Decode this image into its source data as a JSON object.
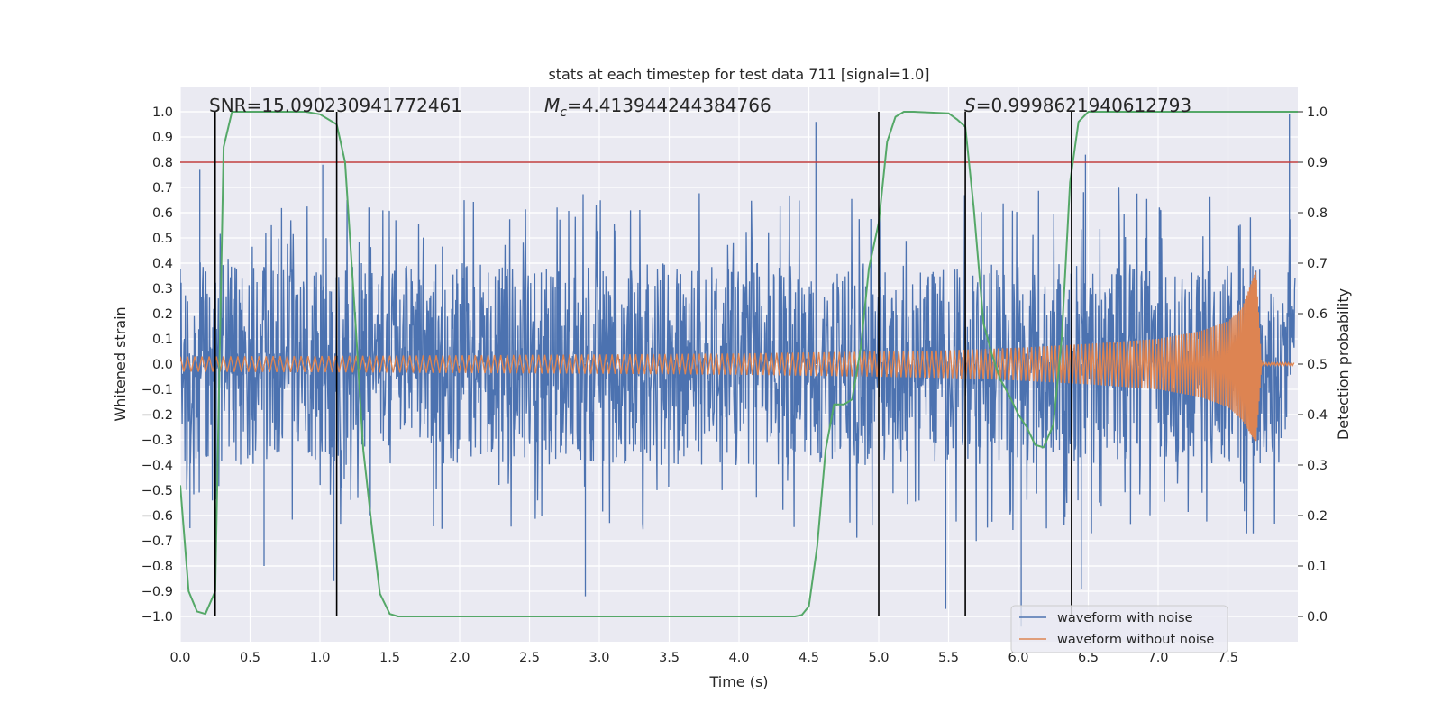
{
  "chart_data": {
    "type": "line",
    "title": "stats at each timestep for test data 711 [signal=1.0]",
    "xlabel": "Time (s)",
    "ylabel_left": "Whitened strain",
    "ylabel_right": "Detection probability",
    "xlim": [
      0.0,
      8.0
    ],
    "ylim_left": [
      -1.1,
      1.1
    ],
    "ylim_right": [
      -0.05,
      1.05
    ],
    "xticks": [
      "0.0",
      "0.5",
      "1.0",
      "1.5",
      "2.0",
      "2.5",
      "3.0",
      "3.5",
      "4.0",
      "4.5",
      "5.0",
      "5.5",
      "6.0",
      "6.5",
      "7.0",
      "7.5"
    ],
    "yticks_left": [
      "1.0",
      "0.9",
      "0.8",
      "0.7",
      "0.6",
      "0.5",
      "0.4",
      "0.3",
      "0.2",
      "0.1",
      "0.0",
      "−0.1",
      "−0.2",
      "−0.3",
      "−0.4",
      "−0.5",
      "−0.6",
      "−0.7",
      "−0.8",
      "−0.9",
      "−1.0"
    ],
    "yticks_right": [
      "1.0",
      "0.9",
      "0.8",
      "0.7",
      "0.6",
      "0.5",
      "0.4",
      "0.3",
      "0.2",
      "0.1",
      "0.0"
    ],
    "grid": true,
    "annotations": {
      "snr": "SNR=15.090230941772461",
      "mc_symbol": "M",
      "mc_sub": "c",
      "mc_value": "=4.413944244384766",
      "s_symbol": "S",
      "s_value": "=0.9998621940612793"
    },
    "threshold": {
      "axis": "right",
      "value": 0.9,
      "color": "#c03d3e"
    },
    "vlines_x": [
      0.25,
      1.12,
      5.0,
      5.62,
      6.38
    ],
    "series": [
      {
        "name": "waveform with noise",
        "color": "#4c72b0",
        "axis": "left",
        "description": "noisy whitened strain, bulk amplitude about ±0.4 with spikes up to about ±1.0",
        "envelope_samples": {
          "x": [
            0.0,
            0.5,
            1.0,
            1.5,
            2.0,
            2.5,
            3.0,
            3.5,
            4.0,
            4.5,
            5.0,
            5.5,
            6.0,
            6.5,
            7.0,
            7.5,
            8.0
          ],
          "max": [
            0.42,
            0.55,
            0.6,
            0.58,
            0.62,
            0.6,
            0.62,
            0.64,
            0.6,
            0.66,
            0.63,
            0.64,
            0.62,
            0.66,
            0.63,
            0.6,
            0.62
          ],
          "min": [
            -0.45,
            -0.58,
            -0.6,
            -0.6,
            -0.6,
            -0.62,
            -0.6,
            -0.62,
            -0.6,
            -0.62,
            -0.64,
            -0.66,
            -0.62,
            -0.62,
            -0.6,
            -0.62,
            -0.6
          ]
        },
        "peaks": [
          {
            "x": 0.14,
            "y": 0.77
          },
          {
            "x": 1.02,
            "y": 0.79
          },
          {
            "x": 4.55,
            "y": 0.96
          },
          {
            "x": 6.48,
            "y": 0.83
          },
          {
            "x": 7.94,
            "y": 0.99
          },
          {
            "x": 1.1,
            "y": -0.86
          },
          {
            "x": 2.9,
            "y": -0.92
          },
          {
            "x": 5.48,
            "y": -0.97
          },
          {
            "x": 6.02,
            "y": -1.04
          },
          {
            "x": 6.45,
            "y": -0.89
          },
          {
            "x": 0.07,
            "y": -0.65
          },
          {
            "x": 0.6,
            "y": -0.8
          }
        ]
      },
      {
        "name": "waveform without noise",
        "color": "#dd8452",
        "axis": "left",
        "description": "chirp signal with amplitude growing to merger at about t=7.7 s, then ringdown",
        "envelope_samples": {
          "x": [
            0.0,
            1.0,
            2.0,
            3.0,
            4.0,
            5.0,
            5.5,
            6.0,
            6.5,
            7.0,
            7.3,
            7.5,
            7.6,
            7.7,
            7.74
          ],
          "max": [
            0.03,
            0.032,
            0.035,
            0.038,
            0.042,
            0.05,
            0.055,
            0.065,
            0.08,
            0.1,
            0.13,
            0.17,
            0.22,
            0.37,
            0.01
          ],
          "min": [
            -0.03,
            -0.032,
            -0.035,
            -0.038,
            -0.042,
            -0.05,
            -0.055,
            -0.065,
            -0.08,
            -0.1,
            -0.13,
            -0.17,
            -0.22,
            -0.31,
            -0.01
          ]
        }
      },
      {
        "name": "detection probability",
        "color": "#55a868",
        "axis": "right",
        "x": [
          0.0,
          0.06,
          0.12,
          0.18,
          0.25,
          0.31,
          0.37,
          0.5,
          0.7,
          0.9,
          1.0,
          1.12,
          1.18,
          1.25,
          1.31,
          1.37,
          1.43,
          1.5,
          1.56,
          2.0,
          3.0,
          4.0,
          4.3,
          4.4,
          4.45,
          4.5,
          4.56,
          4.62,
          4.68,
          4.75,
          4.81,
          4.87,
          4.93,
          5.0,
          5.06,
          5.12,
          5.18,
          5.25,
          5.5,
          5.56,
          5.62,
          5.68,
          5.75,
          5.81,
          5.87,
          5.93,
          6.0,
          6.06,
          6.12,
          6.18,
          6.25,
          6.31,
          6.37,
          6.43,
          6.5,
          7.0,
          7.5,
          8.0
        ],
        "y": [
          0.26,
          0.05,
          0.01,
          0.005,
          0.05,
          0.93,
          1.0,
          1.0,
          1.0,
          1.0,
          0.995,
          0.975,
          0.9,
          0.6,
          0.33,
          0.18,
          0.045,
          0.005,
          0.0,
          0.0,
          0.0,
          0.0,
          0.0,
          0.0,
          0.003,
          0.02,
          0.14,
          0.33,
          0.42,
          0.42,
          0.43,
          0.53,
          0.69,
          0.78,
          0.94,
          0.99,
          1.0,
          1.0,
          0.997,
          0.985,
          0.97,
          0.81,
          0.58,
          0.52,
          0.47,
          0.44,
          0.4,
          0.375,
          0.34,
          0.335,
          0.38,
          0.55,
          0.86,
          0.98,
          1.0,
          1.0,
          1.0,
          1.0
        ]
      }
    ],
    "legend": {
      "position": "lower-right",
      "entries": [
        {
          "label": "waveform with noise",
          "color": "#4c72b0"
        },
        {
          "label": "waveform without noise",
          "color": "#dd8452"
        }
      ]
    }
  }
}
